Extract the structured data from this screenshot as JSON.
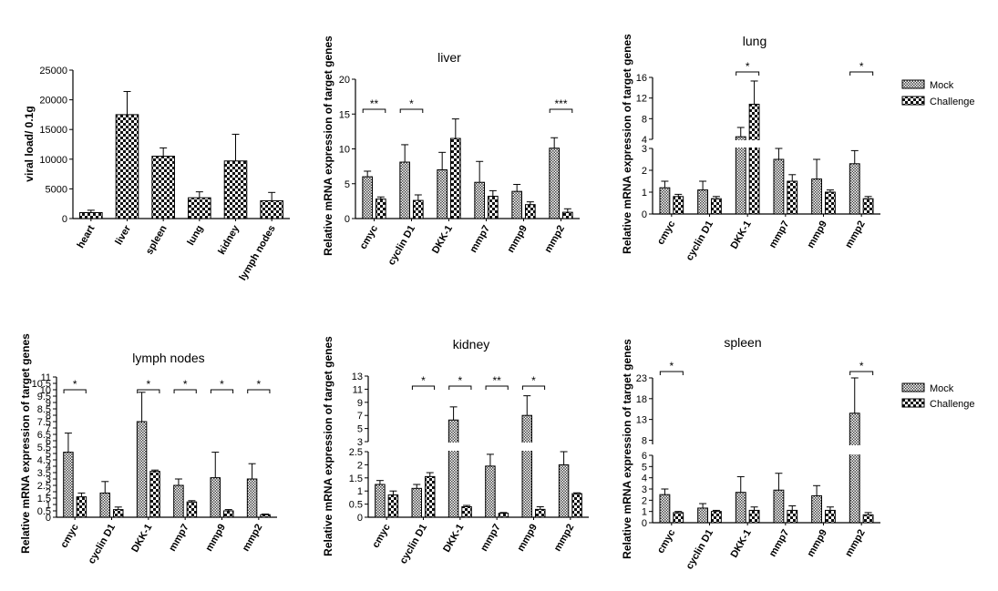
{
  "chart_data": [
    {
      "id": "viral",
      "type": "bar",
      "title": "",
      "ylabel": "viral load/ 0.1g",
      "categories": [
        "heart",
        "liver",
        "spleen",
        "lung",
        "kidney",
        "lymph nodes"
      ],
      "series": [
        {
          "values": [
            1000,
            17500,
            10500,
            3500,
            9700,
            3000
          ],
          "errors": [
            400,
            3900,
            1400,
            1000,
            4500,
            1400
          ]
        }
      ],
      "ylim": [
        0,
        25000
      ],
      "yticks": [
        0,
        5000,
        10000,
        15000,
        20000,
        25000
      ],
      "significance": []
    },
    {
      "id": "liver",
      "type": "bar",
      "title": "liver",
      "ylabel": "Relative mRNA expression of target genes",
      "categories": [
        "cmyc",
        "cyclin D1",
        "DKK-1",
        "mmp7",
        "mmp9",
        "mmp2"
      ],
      "series": [
        {
          "name": "Mock",
          "values": [
            6.0,
            8.1,
            7.0,
            5.2,
            3.9,
            10.1
          ],
          "errors": [
            0.8,
            2.5,
            2.5,
            3.0,
            1.0,
            1.5
          ]
        },
        {
          "name": "Challenge",
          "values": [
            2.8,
            2.6,
            11.5,
            3.2,
            2.0,
            0.9
          ],
          "errors": [
            0.3,
            0.8,
            2.8,
            0.8,
            0.4,
            0.5
          ]
        }
      ],
      "ylim": [
        0,
        20
      ],
      "yticks": [
        0,
        5,
        10,
        15,
        20
      ],
      "significance": [
        {
          "category": 0,
          "label": "**"
        },
        {
          "category": 1,
          "label": "*"
        },
        {
          "category": 5,
          "label": "***"
        }
      ]
    },
    {
      "id": "lung",
      "type": "bar",
      "title": "lung",
      "ylabel": "Relative mRNA expression of target genes",
      "categories": [
        "cmyc",
        "cyclin D1",
        "DKK-1",
        "mmp7",
        "mmp9",
        "mmp2"
      ],
      "series": [
        {
          "name": "Mock",
          "values": [
            1.2,
            1.1,
            4.5,
            2.5,
            1.6,
            2.3
          ],
          "errors": [
            0.3,
            0.4,
            1.8,
            0.5,
            0.9,
            0.6
          ]
        },
        {
          "name": "Challenge",
          "values": [
            0.8,
            0.7,
            10.8,
            1.5,
            1.0,
            0.7
          ],
          "errors": [
            0.1,
            0.1,
            4.5,
            0.3,
            0.1,
            0.1
          ]
        }
      ],
      "broken_axis": {
        "lower": [
          0,
          3
        ],
        "upper": [
          4,
          16
        ]
      },
      "yticks_lower": [
        0,
        1,
        2,
        3
      ],
      "yticks_upper": [
        4,
        8,
        12,
        16
      ],
      "significance": [
        {
          "category": 2,
          "label": "*"
        },
        {
          "category": 5,
          "label": "*"
        }
      ],
      "legend": "right"
    },
    {
      "id": "lymph",
      "type": "bar",
      "title": "lymph nodes",
      "ylabel": "Relative mRNA expression of target genes",
      "categories": [
        "cmyc",
        "cyclin D1",
        "DKK-1",
        "mmp7",
        "mmp9",
        "mmp2"
      ],
      "series": [
        {
          "name": "Mock",
          "values": [
            5.1,
            1.9,
            7.5,
            2.5,
            3.1,
            3.0
          ],
          "errors": [
            1.5,
            0.9,
            2.3,
            0.5,
            2.0,
            1.2
          ]
        },
        {
          "name": "Challenge",
          "values": [
            1.6,
            0.6,
            3.6,
            1.2,
            0.5,
            0.2
          ],
          "errors": [
            0.3,
            0.2,
            0.1,
            0.1,
            0.1,
            0.05
          ]
        }
      ],
      "ylim": [
        0,
        11
      ],
      "yticks": [
        0,
        0.5,
        1,
        1.5,
        2,
        2.5,
        3,
        3.5,
        4,
        4.5,
        5,
        5.5,
        6,
        6.5,
        7,
        7.5,
        8,
        8.5,
        9,
        9.5,
        10,
        10.5,
        11
      ],
      "significance": [
        {
          "category": 0,
          "label": "*"
        },
        {
          "category": 2,
          "label": "*"
        },
        {
          "category": 3,
          "label": "*"
        },
        {
          "category": 4,
          "label": "*"
        },
        {
          "category": 5,
          "label": "*"
        }
      ]
    },
    {
      "id": "kidney",
      "type": "bar",
      "title": "kidney",
      "ylabel": "Relative mRNA expression of target genes",
      "categories": [
        "cmyc",
        "cyclin D1",
        "DKK-1",
        "mmp7",
        "mmp9",
        "mmp2"
      ],
      "series": [
        {
          "name": "Mock",
          "values": [
            1.25,
            1.1,
            6.3,
            1.95,
            7.0,
            2.0
          ],
          "errors": [
            0.15,
            0.15,
            2.0,
            0.45,
            3.0,
            0.5
          ]
        },
        {
          "name": "Challenge",
          "values": [
            0.85,
            1.55,
            0.4,
            0.15,
            0.3,
            0.9
          ],
          "errors": [
            0.15,
            0.15,
            0.05,
            0.03,
            0.1,
            0.03
          ]
        }
      ],
      "broken_axis": {
        "lower": [
          0,
          2.5
        ],
        "upper": [
          3,
          13
        ]
      },
      "yticks_lower": [
        0,
        0.5,
        1,
        1.5,
        2,
        2.5
      ],
      "yticks_upper": [
        3,
        5,
        7,
        9,
        11,
        13
      ],
      "significance": [
        {
          "category": 1,
          "label": "*"
        },
        {
          "category": 2,
          "label": "*"
        },
        {
          "category": 3,
          "label": "**"
        },
        {
          "category": 4,
          "label": "*"
        }
      ]
    },
    {
      "id": "spleen",
      "type": "bar",
      "title": "spleen",
      "ylabel": "Relative mRNA expression of target genes",
      "categories": [
        "cmyc",
        "cyclin D1",
        "DKK-1",
        "mmp7",
        "mmp9",
        "mmp2"
      ],
      "series": [
        {
          "name": "Mock",
          "values": [
            2.5,
            1.3,
            2.7,
            2.9,
            2.4,
            14.5
          ],
          "errors": [
            0.5,
            0.4,
            1.4,
            1.5,
            0.9,
            8.5
          ]
        },
        {
          "name": "Challenge",
          "values": [
            0.9,
            1.0,
            1.1,
            1.1,
            1.1,
            0.7
          ],
          "errors": [
            0.1,
            0.1,
            0.3,
            0.4,
            0.3,
            0.2
          ]
        }
      ],
      "broken_axis": {
        "lower": [
          0,
          6
        ],
        "upper": [
          7,
          23
        ]
      },
      "yticks_lower": [
        0,
        1,
        2,
        3,
        4,
        5,
        6
      ],
      "yticks_upper": [
        8,
        13,
        18,
        23
      ],
      "significance": [
        {
          "category": 0,
          "label": "*"
        },
        {
          "category": 5,
          "label": "*"
        }
      ],
      "legend": "right"
    }
  ],
  "legends": [
    {
      "items": [
        {
          "label": "Mock"
        },
        {
          "label": "Challenge"
        }
      ]
    },
    {
      "items": [
        {
          "label": "Mock"
        },
        {
          "label": "Challenge"
        }
      ]
    }
  ]
}
